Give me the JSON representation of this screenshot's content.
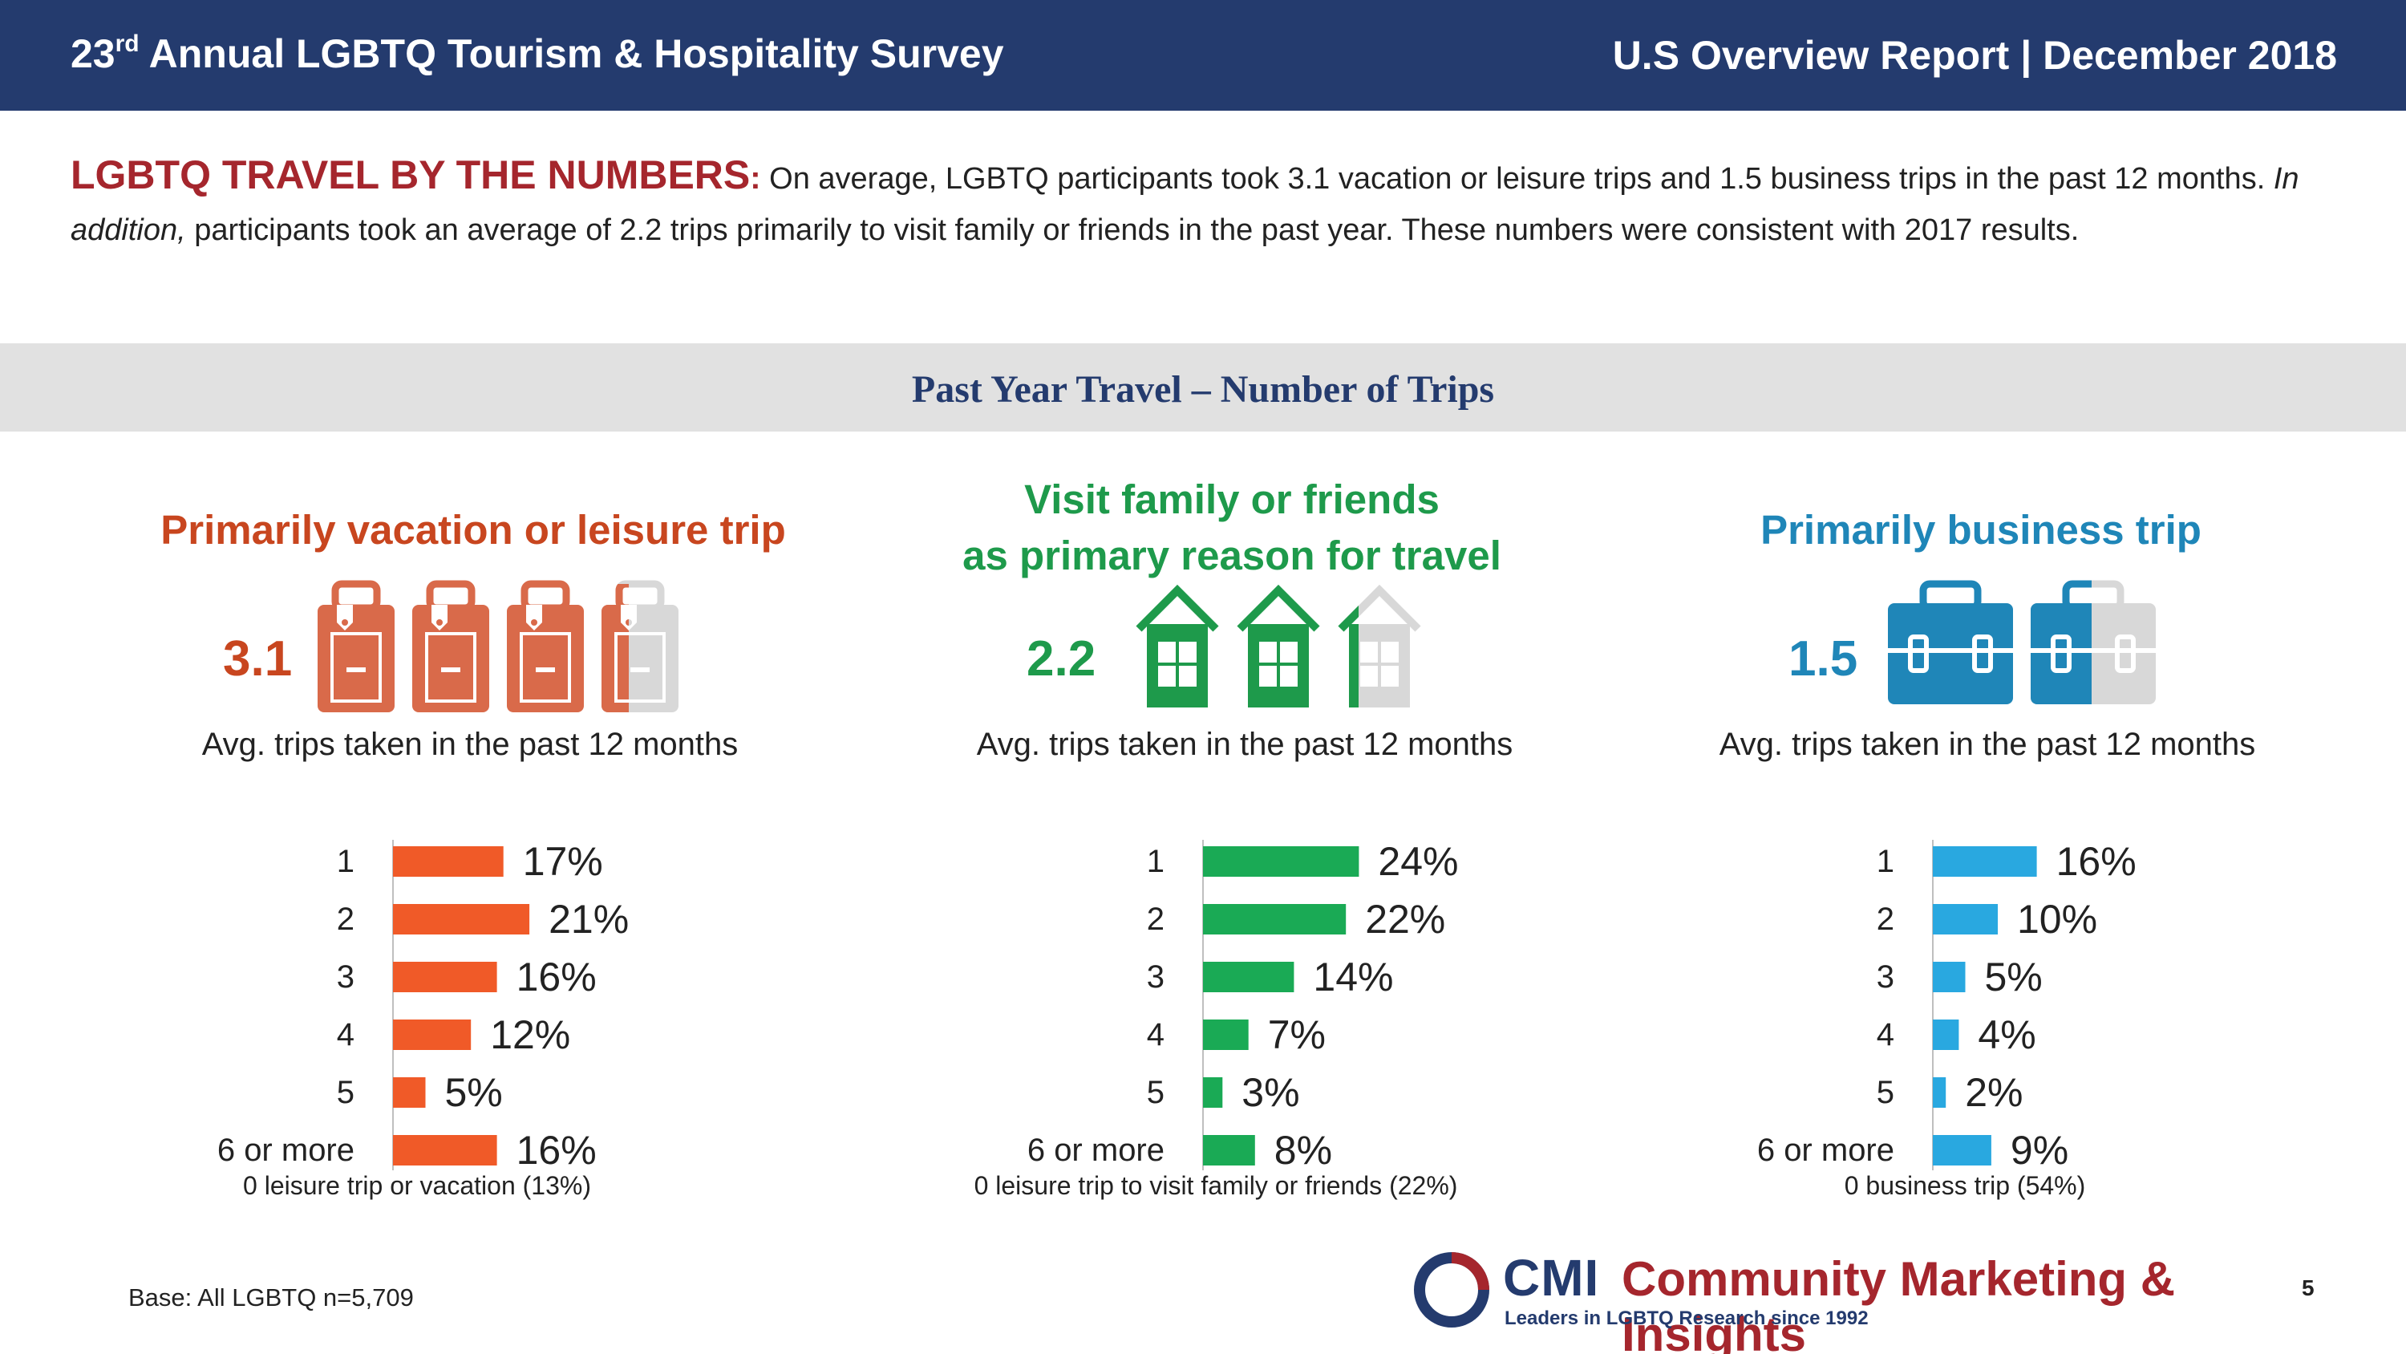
{
  "header": {
    "title_main": "23",
    "title_sup": "rd",
    "title_rest": " Annual LGBTQ Tourism & Hospitality Survey",
    "report": "U.S Overview Report | December 2018"
  },
  "intro": {
    "lead": "LGBTQ TRAVEL BY THE NUMBERS",
    "colon": ":",
    "text1": " On average, LGBTQ participants took 3.1 vacation or leisure trips and 1.5 business trips in the past 12 months. ",
    "italic": "In addition,",
    "text2": " participants took an average of 2.2 trips primarily to visit family or friends in the past year. These numbers were consistent with 2017 results."
  },
  "band_title": "Past Year Travel – Number of Trips",
  "panels": [
    {
      "title_line1": "Primarily vacation or leisure trip",
      "title_line2": "",
      "avg": "3.1",
      "avg_caption": "Avg. trips taken in the past 12 months",
      "zero_note": "0 leisure trip or vacation (13%)",
      "color": "#f05a28",
      "title_color": "#c8461f",
      "icon_color": "#d96a4a",
      "icon": "suitcase-icon"
    },
    {
      "title_line1": "Visit family or friends",
      "title_line2": "as primary reason for travel",
      "avg": "2.2",
      "avg_caption": "Avg. trips taken in the past 12 months",
      "zero_note": "0 leisure trip to visit family or friends (22%)",
      "color": "#1aaa55",
      "title_color": "#1e9a4b",
      "icon_color": "#1e9a4b",
      "icon": "house-icon"
    },
    {
      "title_line1": "Primarily business trip",
      "title_line2": "",
      "avg": "1.5",
      "avg_caption": "Avg. trips taken in the past 12 months",
      "zero_note": "0 business trip (54%)",
      "color": "#29a8e0",
      "title_color": "#1f86b8",
      "icon_color": "#1f86b8",
      "icon": "briefcase-icon"
    }
  ],
  "chart_data": [
    {
      "type": "bar",
      "orientation": "horizontal",
      "categories": [
        "1",
        "2",
        "3",
        "4",
        "5",
        "6 or more"
      ],
      "values": [
        17,
        21,
        16,
        12,
        5,
        16
      ],
      "labels": [
        "17%",
        "21%",
        "16%",
        "12%",
        "5%",
        "16%"
      ]
    },
    {
      "type": "bar",
      "orientation": "horizontal",
      "categories": [
        "1",
        "2",
        "3",
        "4",
        "5",
        "6 or more"
      ],
      "values": [
        24,
        22,
        14,
        7,
        3,
        8
      ],
      "labels": [
        "24%",
        "22%",
        "14%",
        "7%",
        "3%",
        "8%"
      ]
    },
    {
      "type": "bar",
      "orientation": "horizontal",
      "categories": [
        "1",
        "2",
        "3",
        "4",
        "5",
        "6 or more"
      ],
      "values": [
        16,
        10,
        5,
        4,
        2,
        9
      ],
      "labels": [
        "16%",
        "10%",
        "5%",
        "4%",
        "2%",
        "9%"
      ]
    }
  ],
  "footer": {
    "base": "Base: All LGBTQ n=5,709",
    "page": "5",
    "logo_cmi": "CMI",
    "logo_name": "Community Marketing & Insights",
    "logo_tag": "Leaders in LGBTQ Research since 1992"
  }
}
